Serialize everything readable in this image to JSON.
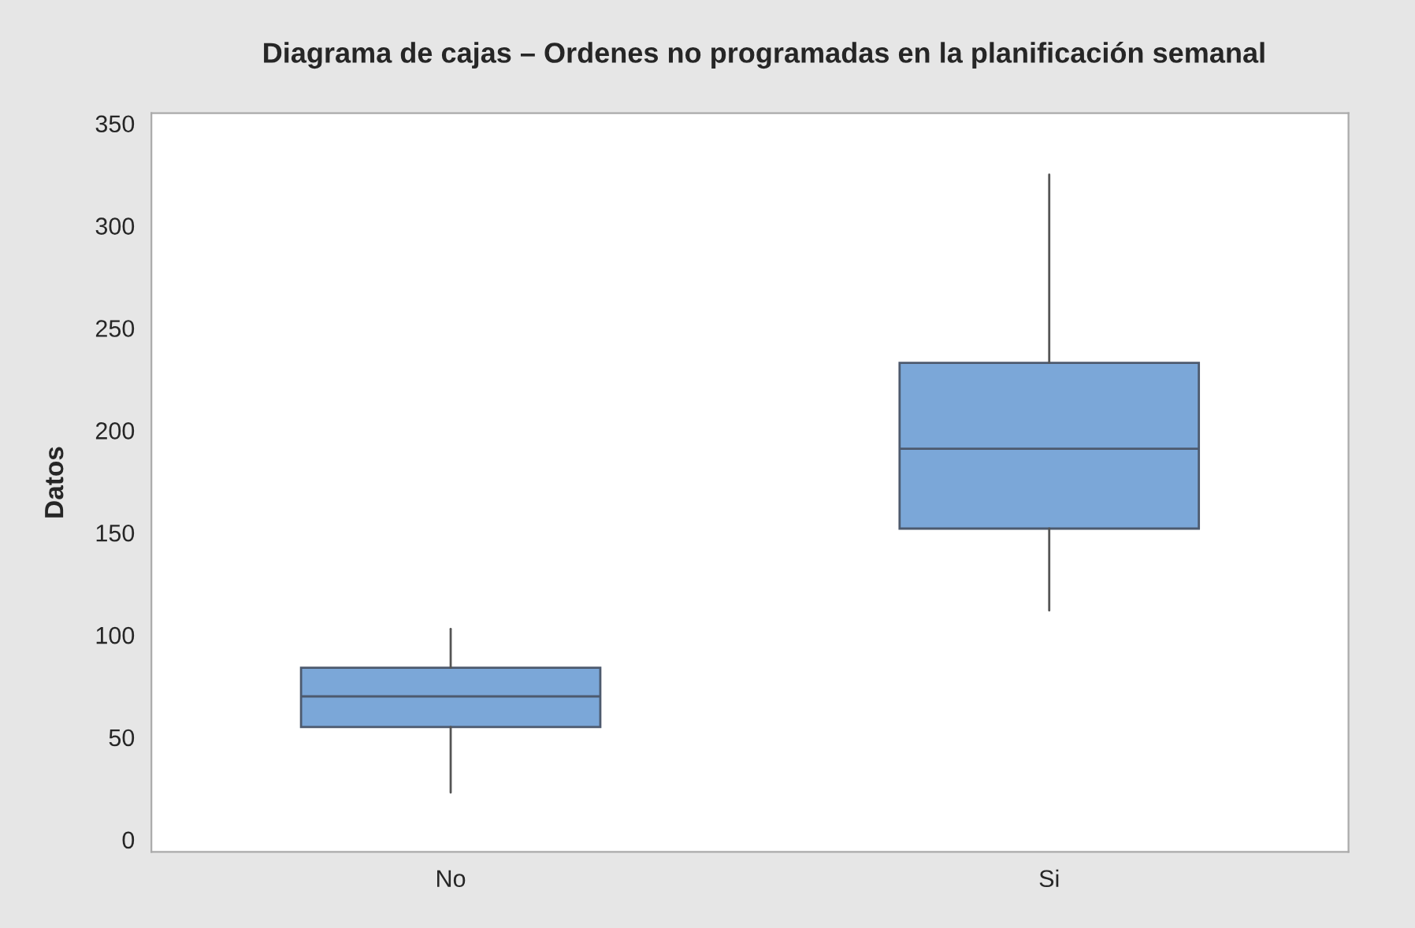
{
  "chart_data": {
    "type": "box",
    "title": "Diagrama de cajas – Ordenes no programadas en la planificación semanal",
    "ylabel": "Datos",
    "categories": [
      "No",
      "Si"
    ],
    "color": "#7ba7d8",
    "boxes": [
      {
        "low": 23,
        "q1": 55,
        "median": 70,
        "q3": 84,
        "high": 103
      },
      {
        "low": 112,
        "q1": 152,
        "median": 191,
        "q3": 233,
        "high": 325
      }
    ],
    "ylim": [
      -6,
      355
    ],
    "yticks": [
      0,
      50,
      100,
      150,
      200,
      250,
      300,
      350
    ],
    "grid": false,
    "legend": false
  }
}
